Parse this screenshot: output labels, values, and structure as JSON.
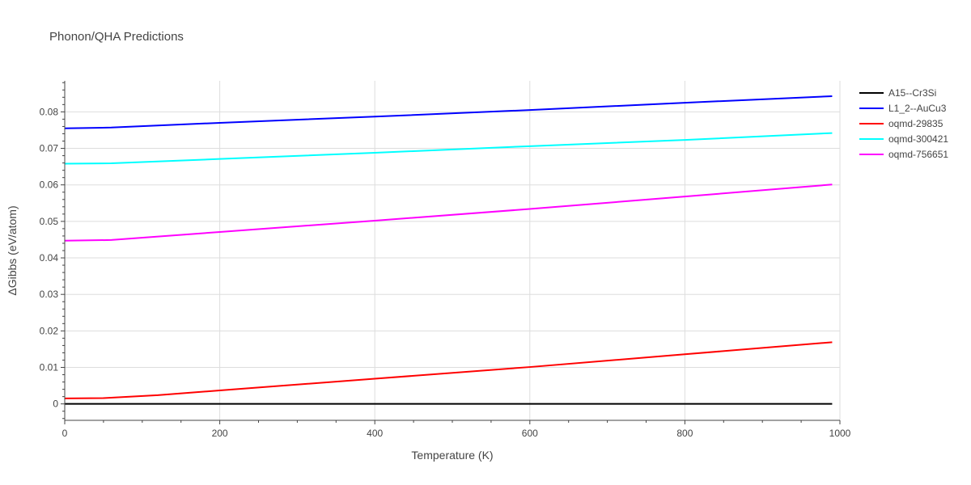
{
  "chart_data": {
    "type": "line",
    "title": "Phonon/QHA Predictions",
    "xlabel": "Temperature (K)",
    "ylabel": "ΔGibbs (eV/atom)",
    "xlim": [
      0,
      1000
    ],
    "ylim": [
      -0.0045,
      0.0885
    ],
    "x_ticks": [
      0,
      200,
      400,
      600,
      800,
      1000
    ],
    "x_tick_labels": [
      "0",
      "200",
      "400",
      "600",
      "800",
      "1000"
    ],
    "y_ticks": [
      0,
      0.01,
      0.02,
      0.03,
      0.04,
      0.05,
      0.06,
      0.07,
      0.08
    ],
    "y_tick_labels": [
      "0",
      "0.01",
      "0.02",
      "0.03",
      "0.04",
      "0.05",
      "0.06",
      "0.07",
      "0.08"
    ],
    "grid": true,
    "legend_position": "top-right",
    "series": [
      {
        "name": "A15--Cr3Si",
        "color": "#000000",
        "x": [
          0,
          990
        ],
        "y": [
          0.0,
          0.0
        ]
      },
      {
        "name": "L1_2--AuCu3",
        "color": "#0000ff",
        "x": [
          0,
          60,
          200,
          400,
          600,
          800,
          990
        ],
        "y": [
          0.0755,
          0.0757,
          0.077,
          0.0787,
          0.0805,
          0.0825,
          0.0843
        ]
      },
      {
        "name": "oqmd-29835",
        "color": "#ff0000",
        "x": [
          0,
          50,
          120,
          200,
          400,
          600,
          800,
          990
        ],
        "y": [
          0.0015,
          0.0016,
          0.0024,
          0.0037,
          0.0069,
          0.0101,
          0.0136,
          0.0169
        ]
      },
      {
        "name": "oqmd-300421",
        "color": "#00ffff",
        "x": [
          0,
          60,
          200,
          400,
          600,
          800,
          990
        ],
        "y": [
          0.0658,
          0.0659,
          0.0671,
          0.0688,
          0.0706,
          0.0723,
          0.0742
        ]
      },
      {
        "name": "oqmd-756651",
        "color": "#ff00ff",
        "x": [
          0,
          60,
          200,
          400,
          600,
          800,
          990
        ],
        "y": [
          0.0447,
          0.0449,
          0.0471,
          0.0502,
          0.0534,
          0.0568,
          0.0601
        ]
      }
    ]
  }
}
